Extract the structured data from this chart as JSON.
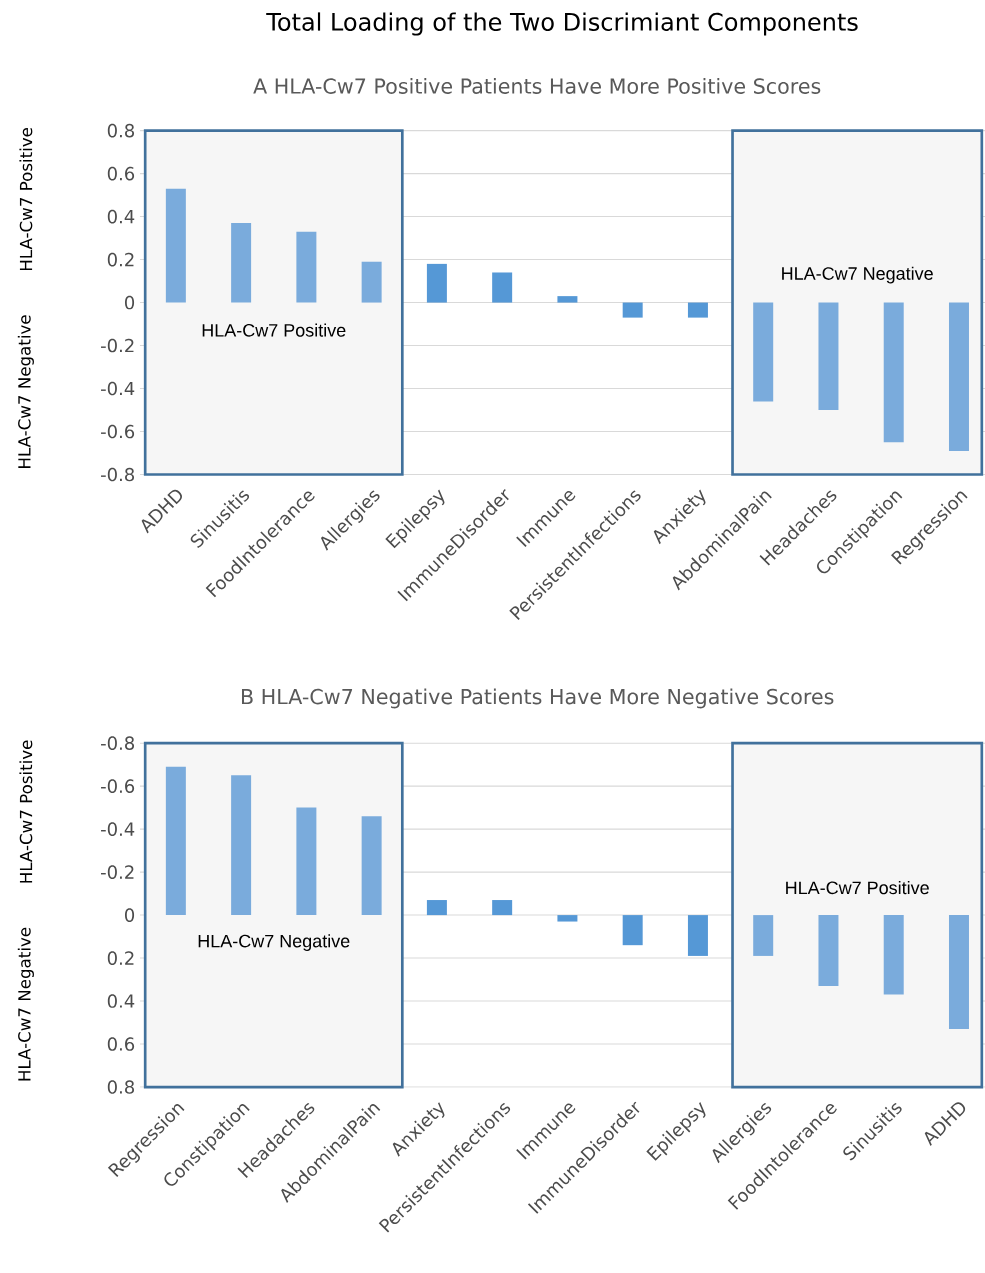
{
  "chart_data": [
    {
      "type": "bar",
      "title": "Total Loading of the Two Discrimiant Components",
      "subtitle": "A  HLA-Cw7 Positive Patients Have More Positive Scores",
      "categories": [
        "ADHD",
        "Sinusitis",
        "FoodIntolerance",
        "Allergies",
        "Epilepsy",
        "ImmuneDisorder",
        "Immune",
        "PersistentInfections",
        "Anxiety",
        "AbdominalPain",
        "Headaches",
        "Constipation",
        "Regression"
      ],
      "values": [
        0.53,
        0.37,
        0.33,
        0.19,
        0.18,
        0.14,
        0.03,
        -0.07,
        -0.07,
        -0.46,
        -0.5,
        -0.65,
        -0.69
      ],
      "colors": [
        "#7aabdc",
        "#7aabdc",
        "#7aabdc",
        "#7aabdc",
        "#5598d6",
        "#5598d6",
        "#5598d6",
        "#5598d6",
        "#5598d6",
        "#7aabdc",
        "#7aabdc",
        "#7aabdc",
        "#7aabdc"
      ],
      "ylim": [
        -0.8,
        0.8
      ],
      "yticks": [
        0.8,
        0.6,
        0.4,
        0.2,
        0,
        -0.2,
        -0.4,
        -0.6,
        -0.8
      ],
      "grid": "y",
      "bands": [
        {
          "axis": "x",
          "from": "ADHD",
          "to": "Allergies",
          "label": "HLA-Cw7 Positive",
          "color": "#41719c"
        },
        {
          "axis": "x",
          "from": "AbdominalPain",
          "to": "Regression",
          "label": "HLA-Cw7 Negative",
          "color": "#41719c"
        }
      ],
      "annotations": [
        "HLA-Cw7  Positive",
        "HLA-Cw7  Negative"
      ]
    },
    {
      "type": "bar",
      "subtitle": "B  HLA-Cw7 Negative Patients Have More Negative Scores",
      "categories": [
        "Regression",
        "Constipation",
        "Headaches",
        "AbdominalPain",
        "Anxiety",
        "PersistentInfections",
        "Immune",
        "ImmuneDisorder",
        "Epilepsy",
        "Allergies",
        "FoodIntolerance",
        "Sinusitis",
        "ADHD"
      ],
      "values": [
        -0.69,
        -0.65,
        -0.5,
        -0.46,
        -0.07,
        -0.07,
        0.03,
        0.14,
        0.19,
        0.19,
        0.33,
        0.37,
        0.53
      ],
      "colors": [
        "#7aabdc",
        "#7aabdc",
        "#7aabdc",
        "#7aabdc",
        "#5598d6",
        "#5598d6",
        "#5598d6",
        "#5598d6",
        "#5598d6",
        "#7aabdc",
        "#7aabdc",
        "#7aabdc",
        "#7aabdc"
      ],
      "ylim": [
        0.8,
        -0.8
      ],
      "yticks": [
        -0.8,
        -0.6,
        -0.4,
        -0.2,
        0,
        0.2,
        0.4,
        0.6,
        0.8
      ],
      "grid": "y",
      "bands": [
        {
          "axis": "x",
          "from": "Regression",
          "to": "AbdominalPain",
          "label": "HLA-Cw7 Negative",
          "color": "#41719c"
        },
        {
          "axis": "x",
          "from": "Allergies",
          "to": "ADHD",
          "label": "HLA-Cw7 Positive",
          "color": "#41719c"
        }
      ],
      "annotations": [
        "HLA-Cw7  Positive",
        "HLA-Cw7  Negative"
      ]
    }
  ]
}
